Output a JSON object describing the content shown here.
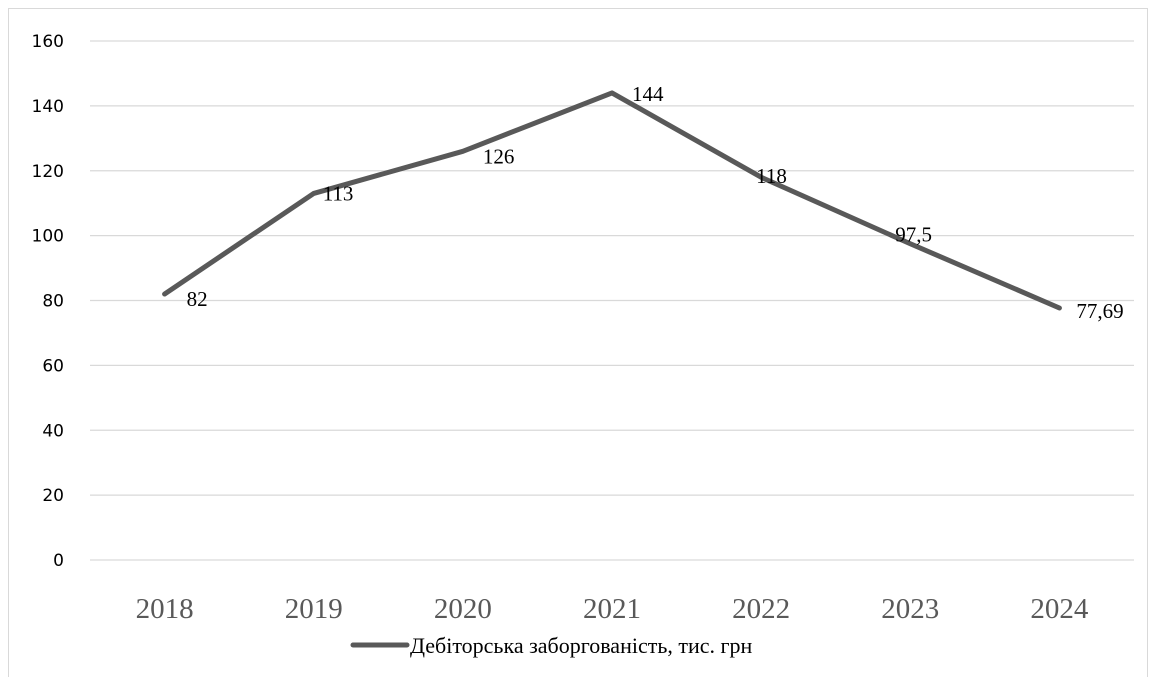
{
  "chart_data": {
    "type": "line",
    "categories": [
      "2018",
      "2019",
      "2020",
      "2021",
      "2022",
      "2023",
      "2024"
    ],
    "series": [
      {
        "name": "Дебіторська заборгованість, тис. грн",
        "values": [
          82,
          113,
          126,
          144,
          118,
          97.5,
          77.69
        ],
        "labels": [
          "82",
          "113",
          "126",
          "144",
          "118",
          "97,5",
          "77,69"
        ],
        "color": "#595959"
      }
    ],
    "ylim": [
      0,
      160
    ],
    "yticks": [
      "0",
      "20",
      "40",
      "60",
      "80",
      "100",
      "120",
      "140",
      "160"
    ],
    "grid": true,
    "legend": "bottom"
  }
}
